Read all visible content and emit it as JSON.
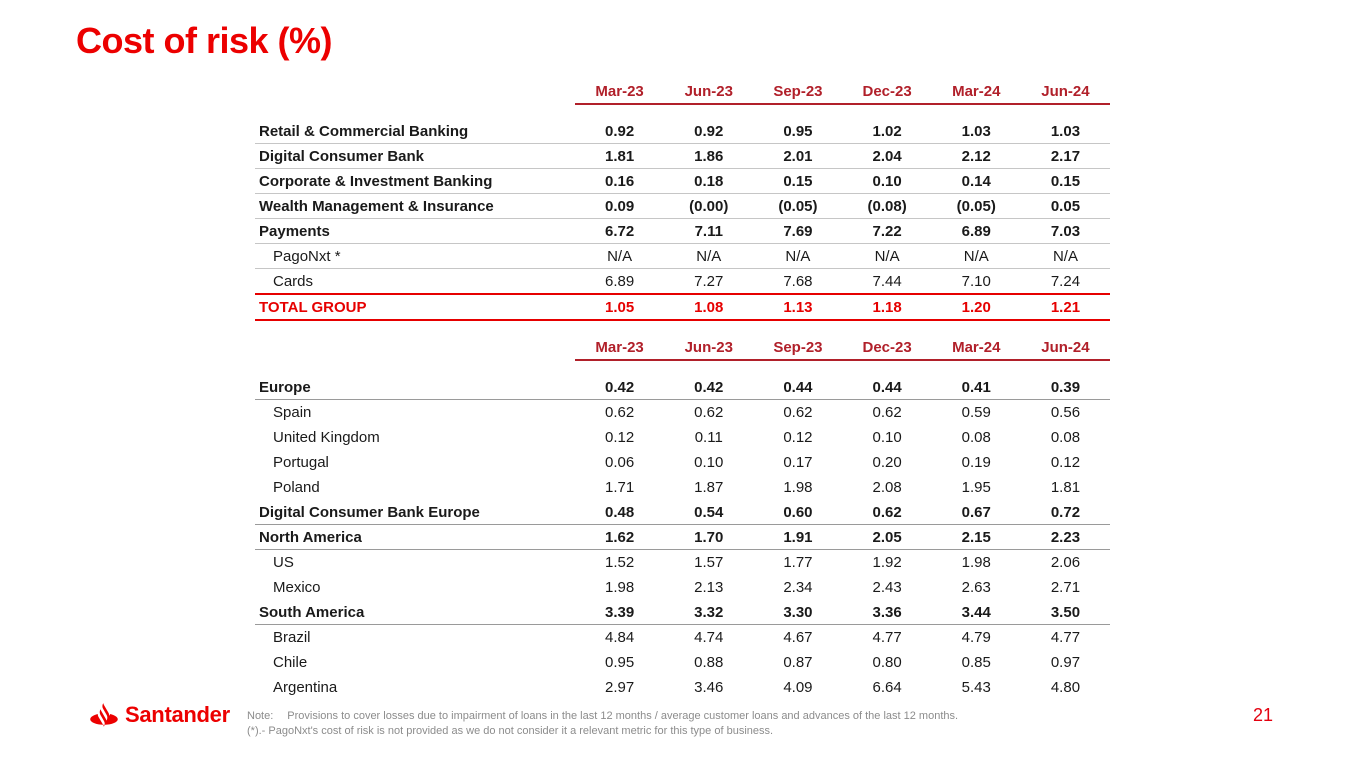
{
  "title": "Cost of risk (%)",
  "colors": {
    "santander_red": "#EC0000",
    "table_header_red": "#B1202A",
    "total_row_red": "#E60000",
    "row_line_gray": "#c6c6c6",
    "section_line_gray": "#9a9a9a",
    "note_gray": "#8c8c8c"
  },
  "tables": [
    {
      "columns": [
        "Mar-23",
        "Jun-23",
        "Sep-23",
        "Dec-23",
        "Mar-24",
        "Jun-24"
      ],
      "rows": [
        {
          "label": "Retail & Commercial Banking",
          "style": "bold",
          "values": [
            "0.92",
            "0.92",
            "0.95",
            "1.02",
            "1.03",
            "1.03"
          ]
        },
        {
          "label": "Digital Consumer Bank",
          "style": "bold",
          "values": [
            "1.81",
            "1.86",
            "2.01",
            "2.04",
            "2.12",
            "2.17"
          ]
        },
        {
          "label": "Corporate & Investment Banking",
          "style": "bold",
          "values": [
            "0.16",
            "0.18",
            "0.15",
            "0.10",
            "0.14",
            "0.15"
          ]
        },
        {
          "label": "Wealth Management & Insurance",
          "style": "bold",
          "values": [
            "0.09",
            "(0.00)",
            "(0.05)",
            "(0.08)",
            "(0.05)",
            "0.05"
          ]
        },
        {
          "label": "Payments",
          "style": "bold",
          "values": [
            "6.72",
            "7.11",
            "7.69",
            "7.22",
            "6.89",
            "7.03"
          ]
        },
        {
          "label": "PagoNxt *",
          "style": "sub",
          "values": [
            "N/A",
            "N/A",
            "N/A",
            "N/A",
            "N/A",
            "N/A"
          ]
        },
        {
          "label": "Cards",
          "style": "sub",
          "values": [
            "6.89",
            "7.27",
            "7.68",
            "7.44",
            "7.10",
            "7.24"
          ]
        },
        {
          "label": "TOTAL GROUP",
          "style": "total",
          "values": [
            "1.05",
            "1.08",
            "1.13",
            "1.18",
            "1.20",
            "1.21"
          ]
        }
      ]
    },
    {
      "columns": [
        "Mar-23",
        "Jun-23",
        "Sep-23",
        "Dec-23",
        "Mar-24",
        "Jun-24"
      ],
      "rows": [
        {
          "label": "Europe",
          "style": "bold",
          "values": [
            "0.42",
            "0.42",
            "0.44",
            "0.44",
            "0.41",
            "0.39"
          ]
        },
        {
          "label": "Spain",
          "style": "sub",
          "values": [
            "0.62",
            "0.62",
            "0.62",
            "0.62",
            "0.59",
            "0.56"
          ]
        },
        {
          "label": "United Kingdom",
          "style": "sub",
          "values": [
            "0.12",
            "0.11",
            "0.12",
            "0.10",
            "0.08",
            "0.08"
          ]
        },
        {
          "label": "Portugal",
          "style": "sub",
          "values": [
            "0.06",
            "0.10",
            "0.17",
            "0.20",
            "0.19",
            "0.12"
          ]
        },
        {
          "label": "Poland",
          "style": "sub",
          "values": [
            "1.71",
            "1.87",
            "1.98",
            "2.08",
            "1.95",
            "1.81"
          ]
        },
        {
          "label": "Digital Consumer Bank Europe",
          "style": "bold",
          "values": [
            "0.48",
            "0.54",
            "0.60",
            "0.62",
            "0.67",
            "0.72"
          ]
        },
        {
          "label": "North America",
          "style": "bold",
          "values": [
            "1.62",
            "1.70",
            "1.91",
            "2.05",
            "2.15",
            "2.23"
          ]
        },
        {
          "label": "US",
          "style": "sub",
          "values": [
            "1.52",
            "1.57",
            "1.77",
            "1.92",
            "1.98",
            "2.06"
          ]
        },
        {
          "label": "Mexico",
          "style": "sub",
          "values": [
            "1.98",
            "2.13",
            "2.34",
            "2.43",
            "2.63",
            "2.71"
          ]
        },
        {
          "label": "South America",
          "style": "bold",
          "values": [
            "3.39",
            "3.32",
            "3.30",
            "3.36",
            "3.44",
            "3.50"
          ]
        },
        {
          "label": "Brazil",
          "style": "sub",
          "values": [
            "4.84",
            "4.74",
            "4.67",
            "4.77",
            "4.79",
            "4.77"
          ]
        },
        {
          "label": "Chile",
          "style": "sub",
          "values": [
            "0.95",
            "0.88",
            "0.87",
            "0.80",
            "0.85",
            "0.97"
          ]
        },
        {
          "label": "Argentina",
          "style": "sub",
          "values": [
            "2.97",
            "3.46",
            "4.09",
            "6.64",
            "5.43",
            "4.80"
          ]
        }
      ]
    }
  ],
  "footer": {
    "brand": "Santander",
    "note_label": "Note:",
    "note_line1": "Provisions to cover losses due to impairment of loans in the last 12 months / average customer loans and advances of the last 12 months.",
    "note_line2": "(*).- PagoNxt's cost of risk is not provided as we do not consider it a relevant metric for this type of business.",
    "page_number": "21"
  }
}
